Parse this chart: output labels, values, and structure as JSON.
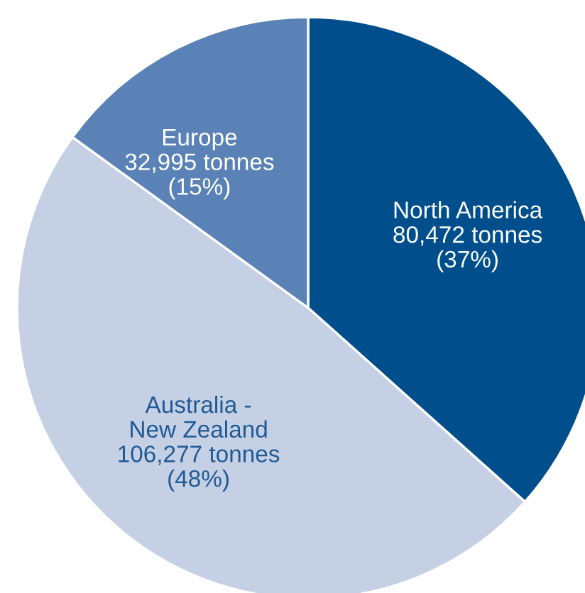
{
  "chart_data": {
    "type": "pie",
    "categories": [
      "North America",
      "Australia -\nNew Zealand",
      "Europe"
    ],
    "values": [
      80472,
      106277,
      32995
    ],
    "value_labels": [
      "80,472 tonnes\n(37%)",
      "106,277 tonnes\n(48%)",
      "32,995 tonnes\n(15%)"
    ],
    "colors": [
      "#004f8c",
      "#c6d0e4",
      "#5a82b6"
    ],
    "legend": false
  }
}
